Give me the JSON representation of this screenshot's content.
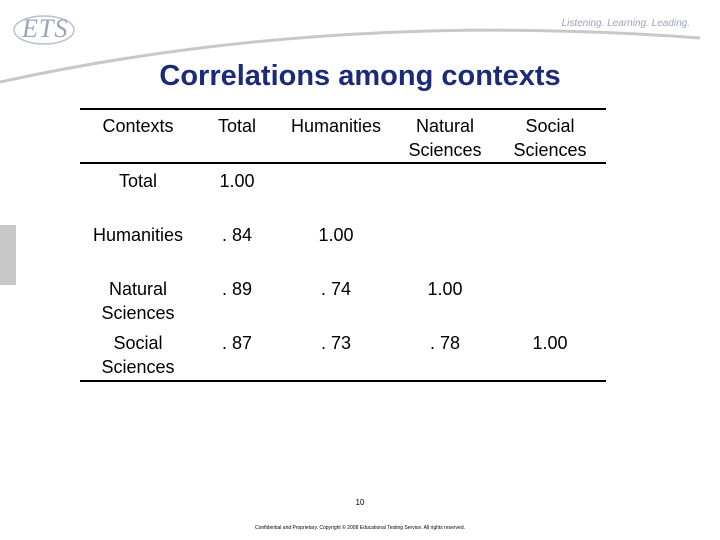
{
  "header": {
    "logo": "ETS",
    "tagline": "Listening. Learning. Leading."
  },
  "title": "Correlations among contexts",
  "table": {
    "header": [
      "Contexts",
      "Total",
      "Humanities",
      "Natural Sciences",
      "Social Sciences"
    ],
    "rows": [
      [
        "Total",
        "1.00"
      ],
      [
        "Humanities",
        ". 84",
        "1.00"
      ],
      [
        "Natural Sciences",
        ". 89",
        ". 74",
        "1.00"
      ],
      [
        "Social Sciences",
        ". 87",
        ". 73",
        ". 78",
        "1.00"
      ]
    ]
  },
  "footer": {
    "page_number": "10",
    "notice": "Confidential and Proprietary. Copyright © 2008 Educational Testing Service. All rights reserved."
  }
}
